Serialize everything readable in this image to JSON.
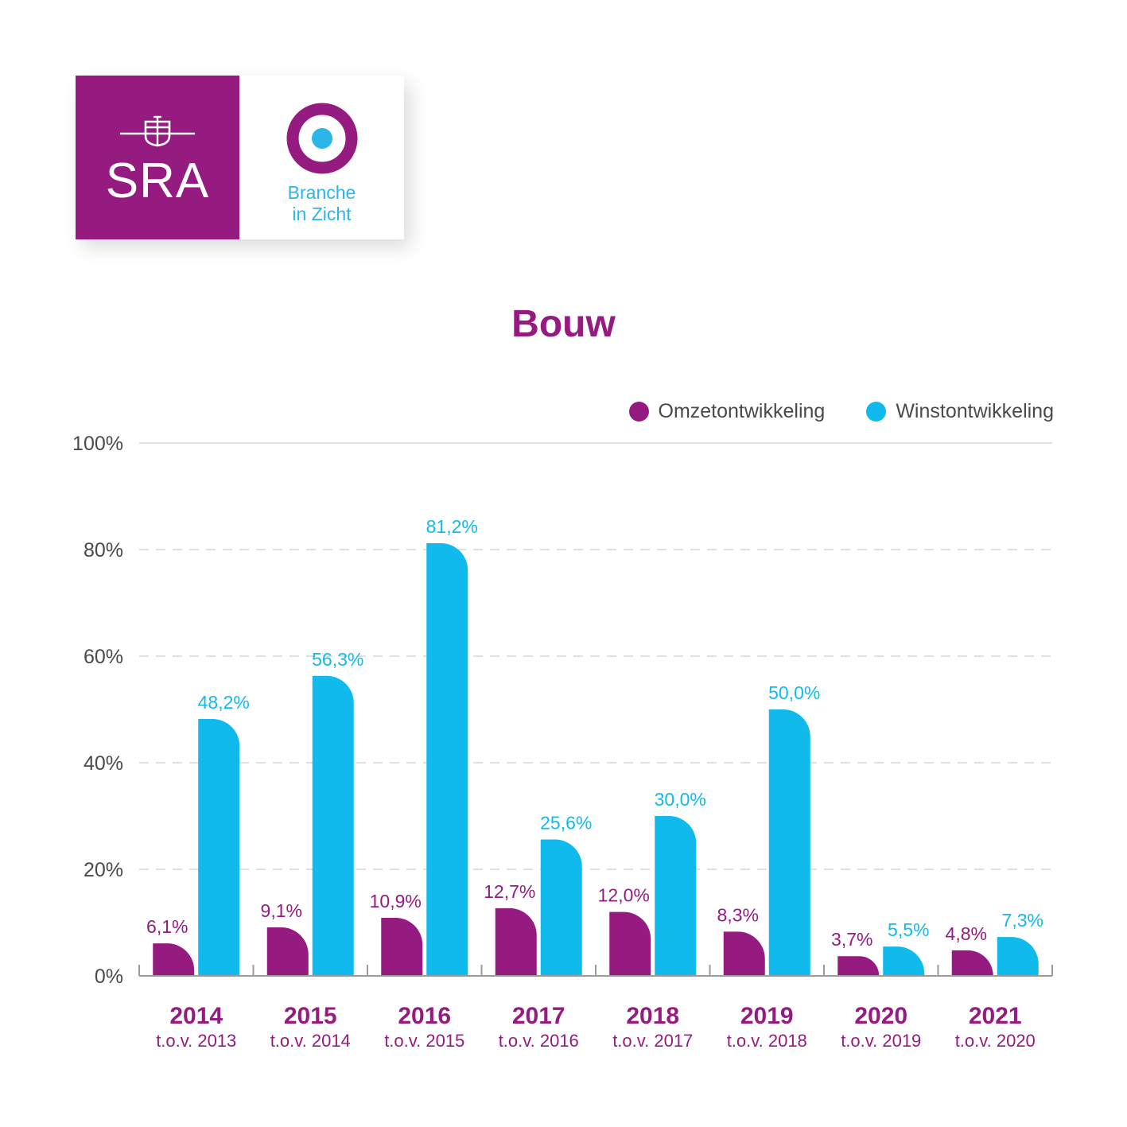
{
  "logo": {
    "brand_text": "SRA",
    "product_line1": "Branche",
    "product_line2": "in Zicht",
    "colors": {
      "brand": "#951b81",
      "accent": "#2ab6e8"
    }
  },
  "legend": {
    "omzet": {
      "label": "Omzetontwikkeling",
      "color": "#951b81"
    },
    "winst": {
      "label": "Winstontwikkeling",
      "color": "#11baec"
    }
  },
  "chart_data": {
    "type": "bar",
    "title": "Bouw",
    "xlabel": "",
    "ylabel": "",
    "ylim": [
      0,
      100
    ],
    "y_ticks": [
      "0%",
      "20%",
      "40%",
      "60%",
      "80%",
      "100%"
    ],
    "y_tick_values": [
      0,
      20,
      40,
      60,
      80,
      100
    ],
    "grid": true,
    "legend_position": "top-right",
    "categories": [
      "2014",
      "2015",
      "2016",
      "2017",
      "2018",
      "2019",
      "2020",
      "2021"
    ],
    "subcategories": [
      "t.o.v. 2013",
      "t.o.v. 2014",
      "t.o.v. 2015",
      "t.o.v. 2016",
      "t.o.v. 2017",
      "t.o.v. 2018",
      "t.o.v. 2019",
      "t.o.v. 2020"
    ],
    "series": [
      {
        "name": "Omzetontwikkeling",
        "color": "#951b81",
        "values": [
          6.1,
          9.1,
          10.9,
          12.7,
          12.0,
          8.3,
          3.7,
          4.8
        ],
        "labels": [
          "6,1%",
          "9,1%",
          "10,9%",
          "12,7%",
          "12,0%",
          "8,3%",
          "3,7%",
          "4,8%"
        ]
      },
      {
        "name": "Winstontwikkeling",
        "color": "#11baec",
        "values": [
          48.2,
          56.3,
          81.2,
          25.6,
          30.0,
          50.0,
          5.5,
          7.3
        ],
        "labels": [
          "48,2%",
          "56,3%",
          "81,2%",
          "25,6%",
          "30,0%",
          "50,0%",
          "5,5%",
          "7,3%"
        ]
      }
    ]
  }
}
